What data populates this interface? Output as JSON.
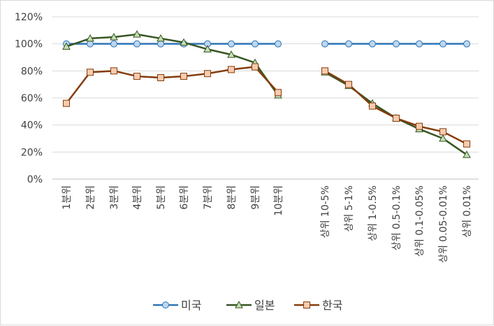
{
  "chart_data": {
    "type": "line",
    "title": "",
    "xlabel": "",
    "ylabel": "",
    "ylim": [
      0,
      120
    ],
    "y_ticks": [
      "0%",
      "20%",
      "40%",
      "60%",
      "80%",
      "100%",
      "120%"
    ],
    "y_tick_values": [
      0,
      20,
      40,
      60,
      80,
      100,
      120
    ],
    "grid": true,
    "legend_position": "bottom",
    "categories": [
      "1분위",
      "2분위",
      "3분위",
      "4분위",
      "5분위",
      "6분위",
      "7분위",
      "8분위",
      "9분위",
      "10분위",
      "상위 10-5%",
      "상위 5-1%",
      "상위 1-0.5%",
      "상위 0.5-0.1%",
      "상위 0.1-0.05%",
      "상위 0.05-0.01%",
      "상위 0.01%"
    ],
    "series": [
      {
        "name": "미국",
        "color": "#2e75b6",
        "marker": "circle",
        "marker_fill": "#bdd7ee",
        "values": [
          100,
          100,
          100,
          100,
          100,
          100,
          100,
          100,
          100,
          100,
          100,
          100,
          100,
          100,
          100,
          100,
          100
        ]
      },
      {
        "name": "일본",
        "color": "#375623",
        "marker": "triangle",
        "marker_fill": "#c5e0b4",
        "values": [
          98,
          104,
          105,
          107,
          104,
          101,
          96,
          92,
          86,
          62,
          79,
          69,
          56,
          45,
          37,
          30,
          18
        ]
      },
      {
        "name": "한국",
        "color": "#843c0c",
        "marker": "square",
        "marker_fill": "#f8cbad",
        "values": [
          56,
          79,
          80,
          76,
          75,
          76,
          78,
          81,
          83,
          64,
          80,
          70,
          54,
          45,
          39,
          35,
          26
        ]
      }
    ]
  }
}
